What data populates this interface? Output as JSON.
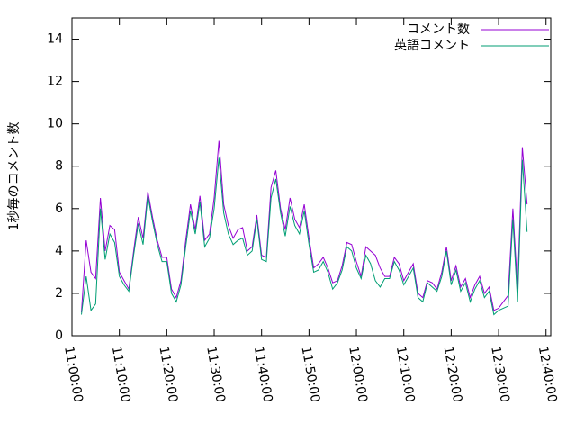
{
  "chart_data": {
    "type": "line",
    "ylabel": "1秒毎のコメント数",
    "x": [
      "11:02:00",
      "11:03:00",
      "11:04:00",
      "11:05:00",
      "11:06:00",
      "11:07:00",
      "11:08:00",
      "11:09:00",
      "11:10:00",
      "11:11:00",
      "11:12:00",
      "11:13:00",
      "11:14:00",
      "11:15:00",
      "11:16:00",
      "11:17:00",
      "11:18:00",
      "11:19:00",
      "11:20:00",
      "11:21:00",
      "11:22:00",
      "11:23:00",
      "11:24:00",
      "11:25:00",
      "11:26:00",
      "11:27:00",
      "11:28:00",
      "11:29:00",
      "11:30:00",
      "11:31:00",
      "11:32:00",
      "11:33:00",
      "11:34:00",
      "11:35:00",
      "11:36:00",
      "11:37:00",
      "11:38:00",
      "11:39:00",
      "11:40:00",
      "11:41:00",
      "11:42:00",
      "11:43:00",
      "11:44:00",
      "11:45:00",
      "11:46:00",
      "11:47:00",
      "11:48:00",
      "11:49:00",
      "11:50:00",
      "11:51:00",
      "11:52:00",
      "11:53:00",
      "11:54:00",
      "11:55:00",
      "11:56:00",
      "11:57:00",
      "11:58:00",
      "11:59:00",
      "12:00:00",
      "12:01:00",
      "12:02:00",
      "12:03:00",
      "12:04:00",
      "12:05:00",
      "12:06:00",
      "12:07:00",
      "12:08:00",
      "12:09:00",
      "12:10:00",
      "12:11:00",
      "12:12:00",
      "12:13:00",
      "12:14:00",
      "12:15:00",
      "12:16:00",
      "12:17:00",
      "12:18:00",
      "12:19:00",
      "12:20:00",
      "12:21:00",
      "12:22:00",
      "12:23:00",
      "12:24:00",
      "12:25:00",
      "12:26:00",
      "12:27:00",
      "12:28:00",
      "12:29:00",
      "12:30:00",
      "12:31:00",
      "12:32:00",
      "12:33:00",
      "12:34:00",
      "12:35:00",
      "12:36:00"
    ],
    "series": [
      {
        "name": "コメント数",
        "color": "#9400d3",
        "values": [
          1.1,
          4.5,
          3.0,
          2.7,
          6.5,
          4.0,
          5.2,
          5.0,
          3.0,
          2.6,
          2.2,
          4.0,
          5.6,
          4.6,
          6.8,
          5.6,
          4.5,
          3.7,
          3.7,
          2.2,
          1.8,
          2.6,
          4.5,
          6.2,
          5.0,
          6.6,
          4.5,
          4.8,
          6.5,
          9.2,
          6.2,
          5.2,
          4.6,
          5.0,
          5.1,
          4.0,
          4.2,
          5.7,
          3.8,
          3.7,
          7.0,
          7.8,
          6.0,
          5.0,
          6.5,
          5.5,
          5.1,
          6.2,
          4.6,
          3.2,
          3.4,
          3.7,
          3.2,
          2.5,
          2.6,
          3.3,
          4.4,
          4.3,
          3.5,
          2.8,
          4.2,
          4.0,
          3.8,
          3.2,
          2.8,
          2.8,
          3.7,
          3.4,
          2.6,
          3.0,
          3.4,
          2.0,
          1.8,
          2.6,
          2.5,
          2.2,
          3.0,
          4.2,
          2.6,
          3.3,
          2.3,
          2.7,
          1.8,
          2.4,
          2.8,
          2.0,
          2.3,
          1.2,
          1.3,
          1.6,
          1.9,
          6.0,
          2.2,
          8.9,
          6.2
        ]
      },
      {
        "name": "英語コメント",
        "color": "#009e73",
        "values": [
          1.0,
          2.8,
          1.2,
          1.5,
          6.0,
          3.6,
          4.8,
          4.4,
          2.8,
          2.4,
          2.1,
          3.8,
          5.3,
          4.3,
          6.6,
          5.4,
          4.3,
          3.5,
          3.5,
          2.0,
          1.6,
          2.4,
          4.2,
          5.9,
          4.8,
          6.3,
          4.2,
          4.6,
          6.0,
          8.4,
          5.8,
          4.8,
          4.3,
          4.5,
          4.6,
          3.8,
          4.0,
          5.5,
          3.6,
          3.5,
          6.5,
          7.4,
          5.8,
          4.7,
          6.1,
          5.2,
          4.8,
          5.9,
          4.3,
          3.0,
          3.1,
          3.5,
          3.0,
          2.2,
          2.5,
          3.1,
          4.2,
          4.0,
          3.2,
          2.7,
          3.8,
          3.4,
          2.6,
          2.3,
          2.7,
          2.7,
          3.5,
          3.1,
          2.4,
          2.8,
          3.2,
          1.8,
          1.6,
          2.5,
          2.3,
          2.1,
          2.8,
          4.0,
          2.4,
          3.1,
          2.1,
          2.5,
          1.6,
          2.2,
          2.6,
          1.8,
          2.1,
          1.0,
          1.2,
          1.3,
          1.4,
          5.5,
          1.6,
          8.3,
          4.9
        ]
      }
    ],
    "xlim": [
      "11:00:00",
      "12:41:00"
    ],
    "xticks": [
      "11:00:00",
      "11:10:00",
      "11:20:00",
      "11:30:00",
      "11:40:00",
      "11:50:00",
      "12:00:00",
      "12:10:00",
      "12:20:00",
      "12:30:00",
      "12:40:00"
    ],
    "ylim": [
      0,
      15
    ],
    "yticks": [
      0,
      2,
      4,
      6,
      8,
      10,
      12,
      14
    ],
    "legend": "upper right"
  }
}
